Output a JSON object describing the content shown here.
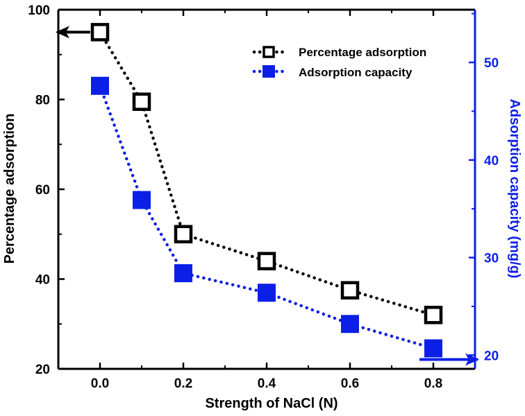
{
  "chart_data": {
    "type": "line",
    "title": "",
    "xlabel": "Strength of NaCl (N)",
    "ylabel_left": "Percentage adsorption",
    "ylabel_right": "Adsorption  capacity (mg/g)",
    "xlim": [
      -0.1,
      0.9
    ],
    "ylim_left": [
      20,
      100
    ],
    "ylim_right": [
      18.6,
      55.4
    ],
    "x_ticks": [
      0.0,
      0.2,
      0.4,
      0.6,
      0.8
    ],
    "x_tick_labels": [
      "0.0",
      "0.2",
      "0.4",
      "0.6",
      "0.8"
    ],
    "y_left_ticks": [
      20,
      40,
      60,
      80,
      100
    ],
    "y_left_tick_labels": [
      "20",
      "40",
      "60",
      "80",
      "100"
    ],
    "y_right_ticks": [
      20,
      30,
      40,
      50
    ],
    "y_right_tick_labels": [
      "20",
      "30",
      "40",
      "50"
    ],
    "legend_position": "top-right",
    "series": [
      {
        "name": "Percentage adsorption",
        "axis": "left",
        "color": "#000000",
        "marker": "open-square",
        "x": [
          0.0,
          0.1,
          0.2,
          0.4,
          0.6,
          0.8
        ],
        "values": [
          95,
          79.5,
          50,
          44,
          37.5,
          32
        ]
      },
      {
        "name": "Adsorption  capacity",
        "axis": "right",
        "color": "#0c1fe6",
        "marker": "filled-square",
        "x": [
          0.0,
          0.1,
          0.2,
          0.4,
          0.6,
          0.8
        ],
        "values": [
          47.6,
          35.9,
          28.4,
          26.4,
          23.2,
          20.7
        ]
      }
    ],
    "annotations": [
      {
        "type": "arrow",
        "direction": "left",
        "target_axis": "left",
        "color": "#000000"
      },
      {
        "type": "arrow",
        "direction": "right",
        "target_axis": "right",
        "color": "#0c1fe6"
      }
    ]
  }
}
